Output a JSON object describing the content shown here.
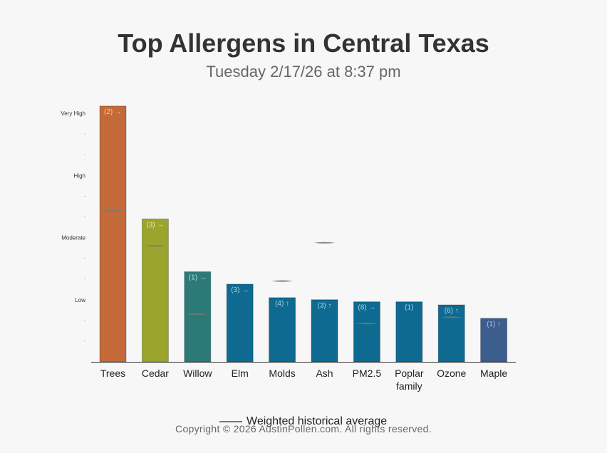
{
  "title": "Top Allergens in Central Texas",
  "subtitle": "Tuesday 2/17/26 at 8:37 pm",
  "legend_label": "Weighted historical average",
  "copyright": "Copyright © 2026 AustinPollen.com.  All rights reserved.",
  "chart_data": {
    "type": "bar",
    "y_levels": [
      "Low",
      "Moderate",
      "High",
      "Very High"
    ],
    "ylim": [
      0,
      13
    ],
    "categories": [
      "Trees",
      "Cedar",
      "Willow",
      "Elm",
      "Molds",
      "Ash",
      "PM2.5",
      "Poplar family",
      "Ozone",
      "Maple"
    ],
    "values": [
      12.35,
      6.9,
      4.35,
      3.75,
      3.1,
      3.0,
      2.9,
      2.9,
      2.75,
      2.1
    ],
    "averages": [
      7.3,
      5.6,
      2.3,
      null,
      3.9,
      5.75,
      1.85,
      null,
      2.15,
      null
    ],
    "bar_labels": [
      "(2) →",
      "(3) →",
      "(1) →",
      "(3) →",
      "(4) ↑",
      "(3) ↑",
      "(8) →",
      "(1)",
      "(6) ↑",
      "(1) ↑"
    ],
    "colors": [
      "#c46a38",
      "#9ba52e",
      "#2b7a78",
      "#0e6a91",
      "#0e6a91",
      "#0e6a91",
      "#0e6a91",
      "#0e6a91",
      "#0e6a91",
      "#3c5e8f"
    ],
    "label_colors": [
      "#f3c8ae",
      "#e2e7b0",
      "#b8dcdc",
      "#a9d2e6",
      "#a9d2e6",
      "#a9d2e6",
      "#a9d2e6",
      "#a9d2e6",
      "#a9d2e6",
      "#b7c6df"
    ],
    "average_color": "#777777",
    "grid": false
  }
}
